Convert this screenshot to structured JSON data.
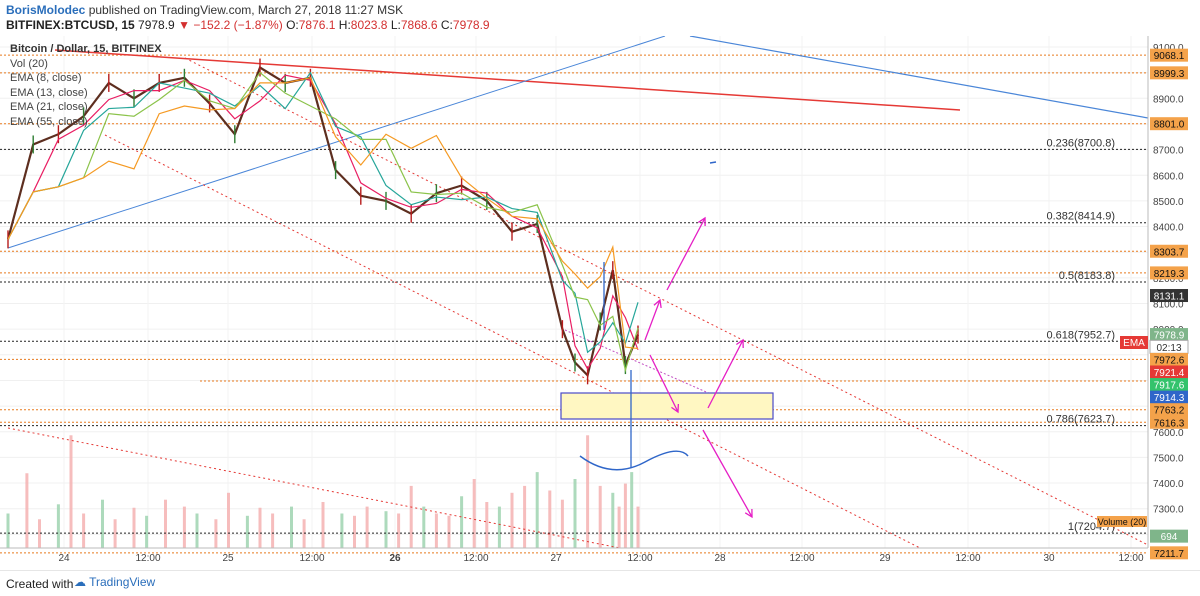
{
  "header": {
    "author": "BorisMolodec",
    "published": "published on TradingView.com, March 27, 2018 11:27 MSK",
    "symbol": "BITFINEX:BTCUSD, 15",
    "last": "7978.9",
    "change": "−152.2 (−1.87%)",
    "o_label": "O:",
    "o_val": "7876.1",
    "h_label": "H:",
    "h_val": "8023.8",
    "l_label": "L:",
    "l_val": "7868.6",
    "c_label": "C:",
    "c_val": "7978.9"
  },
  "legend": {
    "title": "Bitcoin / Dollar, 15, BITFINEX",
    "items": [
      "Vol (20)",
      "EMA (8, close)",
      "EMA (13, close)",
      "EMA (21, close)",
      "EMA (55, close)"
    ]
  },
  "footer": {
    "created": "Created with",
    "brand": "TradingView"
  },
  "chart_data": {
    "type": "line",
    "title": "Bitcoin / Dollar, 15, BITFINEX",
    "x_tick_labels": [
      "24",
      "12:00",
      "25",
      "12:00",
      "26",
      "12:00",
      "27",
      "12:00",
      "28",
      "12:00",
      "29",
      "12:00",
      "30",
      "12:00"
    ],
    "y_tick_labels": [
      "9100.0",
      "9000.0",
      "8900.0",
      "8800.0",
      "8700.0",
      "8600.0",
      "8500.0",
      "8400.0",
      "8300.0",
      "8200.0",
      "8100.0",
      "8000.0",
      "7900.0",
      "7800.0",
      "7700.0",
      "7600.0",
      "7500.0",
      "7400.0",
      "7300.0",
      "7200.0"
    ],
    "ylim": [
      7150,
      9150
    ],
    "price_x": [
      0,
      4,
      8,
      12,
      16,
      20,
      24,
      28,
      32,
      36,
      40,
      44,
      48,
      52,
      56,
      60,
      64,
      68,
      72,
      76,
      80,
      84,
      88,
      90,
      92,
      94,
      96,
      98,
      100
    ],
    "price_y": [
      8350,
      8720,
      8760,
      8830,
      8960,
      8900,
      8960,
      8980,
      8880,
      8760,
      9020,
      8960,
      8980,
      8620,
      8520,
      8500,
      8450,
      8530,
      8560,
      8500,
      8380,
      8410,
      8000,
      7870,
      7820,
      8030,
      8230,
      7860,
      7979
    ],
    "volume_x": [
      0,
      3,
      5,
      8,
      10,
      12,
      15,
      17,
      20,
      22,
      25,
      28,
      30,
      33,
      35,
      38,
      40,
      42,
      45,
      47,
      50,
      53,
      55,
      57,
      60,
      62,
      64,
      66,
      68,
      70,
      72,
      74,
      76,
      78,
      80,
      82,
      84,
      86,
      88,
      90,
      92,
      94,
      96,
      97,
      98,
      99,
      100
    ],
    "volume": [
      300,
      650,
      250,
      380,
      980,
      300,
      420,
      250,
      350,
      280,
      420,
      360,
      300,
      250,
      480,
      280,
      350,
      300,
      360,
      250,
      400,
      300,
      280,
      360,
      320,
      300,
      540,
      360,
      300,
      280,
      450,
      600,
      400,
      360,
      480,
      540,
      660,
      500,
      420,
      600,
      980,
      540,
      480,
      360,
      560,
      660,
      360
    ],
    "fib_levels": [
      {
        "label": "0.236(8700.8)",
        "price": 8700.8
      },
      {
        "label": "0.382(8414.9)",
        "price": 8414.9
      },
      {
        "label": "0.5(8183.8)",
        "price": 8183.8
      },
      {
        "label": "0.618(7952.7)",
        "price": 7952.7
      },
      {
        "label": "0.786(7623.7)",
        "price": 7623.7
      },
      {
        "label": "1(7204.7)",
        "price": 7204.7
      }
    ],
    "price_tags": [
      {
        "text": "9068.1",
        "price": 9068.1,
        "bg": "#f4a24a",
        "fg": "#111"
      },
      {
        "text": "8999.3",
        "price": 8999.3,
        "bg": "#f4a24a",
        "fg": "#111"
      },
      {
        "text": "8801.0",
        "price": 8801.0,
        "bg": "#f4a24a",
        "fg": "#111"
      },
      {
        "text": "8303.7",
        "price": 8303.7,
        "bg": "#f4a24a",
        "fg": "#111"
      },
      {
        "text": "8219.3",
        "price": 8219.3,
        "bg": "#f4a24a",
        "fg": "#111"
      },
      {
        "text": "8131.1",
        "price": 8131.1,
        "bg": "#333333",
        "fg": "#fff"
      },
      {
        "text": "7978.9",
        "price": 7978.9,
        "bg": "#7fb58a",
        "fg": "#fff"
      },
      {
        "text": "02:13",
        "price": 7931,
        "bg": "#ffffff",
        "fg": "#333"
      },
      {
        "text": "7972.6",
        "price": 7882,
        "bg": "#f4a24a",
        "fg": "#111"
      },
      {
        "text": "7921.4",
        "price": 7833,
        "bg": "#e53935",
        "fg": "#fff"
      },
      {
        "text": "7917.6",
        "price": 7784,
        "bg": "#34c36c",
        "fg": "#fff"
      },
      {
        "text": "7914.3",
        "price": 7735,
        "bg": "#2f66c9",
        "fg": "#fff"
      },
      {
        "text": "7763.2",
        "price": 7686,
        "bg": "#f4a24a",
        "fg": "#111"
      },
      {
        "text": "7616.3",
        "price": 7637,
        "bg": "#f4a24a",
        "fg": "#111"
      },
      {
        "text": "694",
        "price": 7193,
        "bg": "#7fb58a",
        "fg": "#fff"
      },
      {
        "text": "7211.7",
        "price": 7128,
        "bg": "#f4a24a",
        "fg": "#111"
      }
    ],
    "ema_tag": "EMA",
    "volume_tag": "Volume (20)",
    "colors": {
      "up": "#2e7d32",
      "down": "#b71c1c",
      "ema8": "#e91e63",
      "ema13": "#26a69a",
      "ema21": "#8bc34a",
      "ema55": "#f59a23",
      "fib": "#222222",
      "level": "#e87a1e",
      "trend_red": "#e53935",
      "trend_blue": "#4a86d8",
      "annot": "#e51ec5"
    }
  }
}
